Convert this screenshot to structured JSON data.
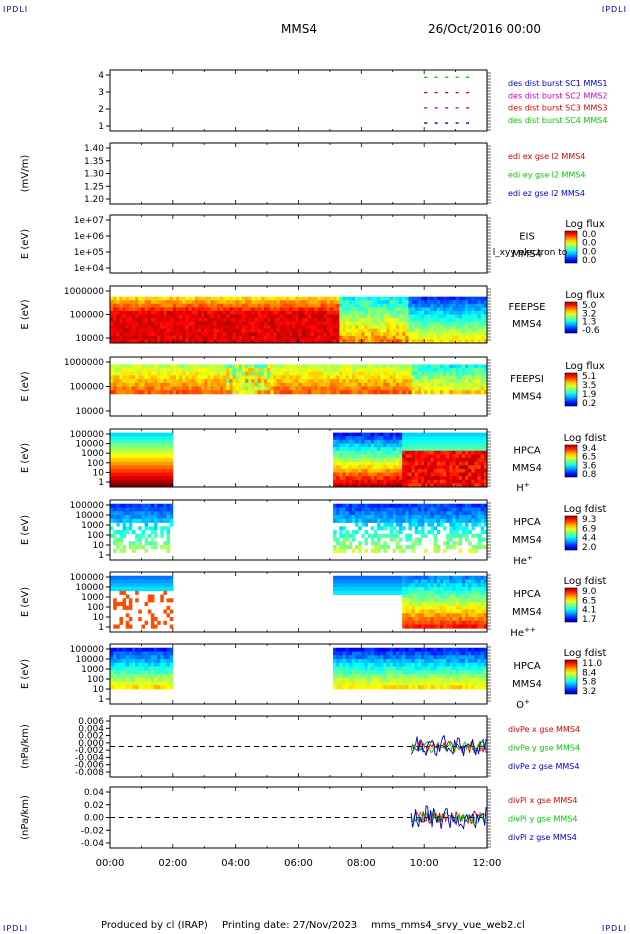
{
  "corner_mark": "IPDLI",
  "header": {
    "spacecraft": "MMS4",
    "datetime": "26/Oct/2016 00:00"
  },
  "footer": {
    "produced_by": "Produced by cl (IRAP)",
    "printing_date": "Printing date: 27/Nov/2023",
    "filename": "mms_mms4_srvy_vue_web2.cl"
  },
  "colors": {
    "red": "#e00000",
    "green": "#00cc00",
    "blue": "#0000cc",
    "magenta": "#cc00cc"
  },
  "chart_data": {
    "type": "heatmap",
    "x_ticks": [
      "00:00",
      "02:00",
      "04:00",
      "06:00",
      "08:00",
      "10:00",
      "12:00"
    ],
    "xlim": [
      "00:00",
      "12:00"
    ],
    "panels": [
      {
        "id": "burst",
        "type": "scatter",
        "y_ticks": [
          "4",
          "3",
          "2",
          "1"
        ],
        "ylim": [
          0.5,
          4.5
        ],
        "legend": [
          {
            "text": "des dist burst SC1 MMS1",
            "color": "#0000cc"
          },
          {
            "text": "des dist burst SC2 MMS2",
            "color": "#cc00cc"
          },
          {
            "text": "des dist burst SC3 MMS3",
            "color": "#e00000"
          },
          {
            "text": "des dist burst SC4 MMS4",
            "color": "#00cc00"
          }
        ],
        "bursts": [
          {
            "y": 4,
            "x": [
              "10:00",
              "10:20",
              "10:40",
              "11:00",
              "11:20"
            ],
            "color": "#00cc00"
          },
          {
            "y": 3,
            "x": [
              "10:00",
              "10:20",
              "10:40",
              "11:00",
              "11:20"
            ],
            "color": "#e00000"
          },
          {
            "y": 2,
            "x": [
              "10:00",
              "10:20",
              "10:40",
              "11:00",
              "11:20"
            ],
            "color": "#cc00cc"
          },
          {
            "y": 1,
            "x": [
              "10:00",
              "10:20",
              "10:40",
              "11:00",
              "11:20"
            ],
            "color": "#0000cc"
          }
        ]
      },
      {
        "id": "edi",
        "type": "line",
        "ylabel": "(mV/m)",
        "y_ticks": [
          "1.40",
          "1.35",
          "1.30",
          "1.25",
          "1.20"
        ],
        "ylim": [
          1.18,
          1.43
        ],
        "legend": [
          {
            "text": "edi ex gse l2 MMS4",
            "color": "#e00000"
          },
          {
            "text": "edi ey gse l2 MMS4",
            "color": "#00cc00"
          },
          {
            "text": "edi ez gse l2 MMS4",
            "color": "#0000cc"
          }
        ]
      },
      {
        "id": "eis",
        "type": "heatmap",
        "ylabel": "E (eV)",
        "y_ticks": [
          "1e+07",
          "1e+06",
          "1e+05",
          "1e+04"
        ],
        "label_lines": [
          "EIS",
          "MMS4"
        ],
        "overlay_text": "l_xyy electron to",
        "colorbar": {
          "title": "Log flux",
          "ticks": [
            "0.0",
            "0.0",
            "0.0",
            "0.0"
          ]
        }
      },
      {
        "id": "feepse",
        "type": "heatmap",
        "ylabel": "E (eV)",
        "y_ticks": [
          "1000000",
          "100000",
          "10000"
        ],
        "label_lines": [
          "FEEPSE",
          "MMS4"
        ],
        "colorbar": {
          "title": "Log flux",
          "ticks": [
            "5.0",
            "3.2",
            "1.3",
            "-0.6"
          ]
        }
      },
      {
        "id": "feepsi",
        "type": "heatmap",
        "ylabel": "E (eV)",
        "y_ticks": [
          "1000000",
          "100000",
          "10000"
        ],
        "label_lines": [
          "FEEPSI",
          "MMS4"
        ],
        "colorbar": {
          "title": "Log flux",
          "ticks": [
            "5.1",
            "3.5",
            "1.9",
            "0.2"
          ]
        }
      },
      {
        "id": "hpca_h",
        "type": "heatmap",
        "ylabel": "E (eV)",
        "y_ticks": [
          "100000",
          "10000",
          "1000",
          "100",
          "10",
          "1"
        ],
        "label_lines": [
          "HPCA",
          "MMS4"
        ],
        "species": "H",
        "species_sup": "+",
        "colorbar": {
          "title": "Log fdist",
          "ticks": [
            "9.4",
            "6.5",
            "3.6",
            "0.8"
          ]
        }
      },
      {
        "id": "hpca_he",
        "type": "heatmap",
        "ylabel": "E (eV)",
        "y_ticks": [
          "100000",
          "10000",
          "1000",
          "100",
          "10",
          "1"
        ],
        "label_lines": [
          "HPCA",
          "MMS4"
        ],
        "species": "He",
        "species_sup": "+",
        "colorbar": {
          "title": "Log fdist",
          "ticks": [
            "9.3",
            "6.9",
            "4.4",
            "2.0"
          ]
        }
      },
      {
        "id": "hpca_hepp",
        "type": "heatmap",
        "ylabel": "E (eV)",
        "y_ticks": [
          "100000",
          "10000",
          "1000",
          "100",
          "10",
          "1"
        ],
        "label_lines": [
          "HPCA",
          "MMS4"
        ],
        "species": "He",
        "species_sup": "++",
        "colorbar": {
          "title": "Log fdist",
          "ticks": [
            "9.0",
            "6.5",
            "4.1",
            "1.7"
          ]
        }
      },
      {
        "id": "hpca_o",
        "type": "heatmap",
        "ylabel": "E (eV)",
        "y_ticks": [
          "100000",
          "10000",
          "1000",
          "100",
          "10",
          "1"
        ],
        "label_lines": [
          "HPCA",
          "MMS4"
        ],
        "species": "O",
        "species_sup": "+",
        "colorbar": {
          "title": "Log fdist",
          "ticks": [
            "11.0",
            "8.4",
            "5.8",
            "3.2"
          ]
        }
      },
      {
        "id": "divpe",
        "type": "line",
        "ylabel": "(nPa/km)",
        "y_ticks": [
          "0.006",
          "0.004",
          "0.002",
          "0.000",
          "-0.002",
          "-0.004",
          "-0.006",
          "-0.008"
        ],
        "ylim": [
          -0.0085,
          0.0065
        ],
        "legend": [
          {
            "text": "divPe x gse MMS4",
            "color": "#e00000"
          },
          {
            "text": "divPe y gse MMS4",
            "color": "#00cc00"
          },
          {
            "text": "divPe z gse MMS4",
            "color": "#0000cc"
          }
        ],
        "activity_start": "09:35"
      },
      {
        "id": "divpi",
        "type": "line",
        "ylabel": "(nPa/km)",
        "y_ticks": [
          "0.04",
          "0.02",
          "0.00",
          "-0.02",
          "-0.04"
        ],
        "ylim": [
          -0.05,
          0.045
        ],
        "legend": [
          {
            "text": "divPi x gse MMS4",
            "color": "#e00000"
          },
          {
            "text": "divPi y gse MMS4",
            "color": "#00cc00"
          },
          {
            "text": "divPi z gse MMS4",
            "color": "#0000cc"
          }
        ],
        "activity_start": "09:35"
      }
    ]
  }
}
